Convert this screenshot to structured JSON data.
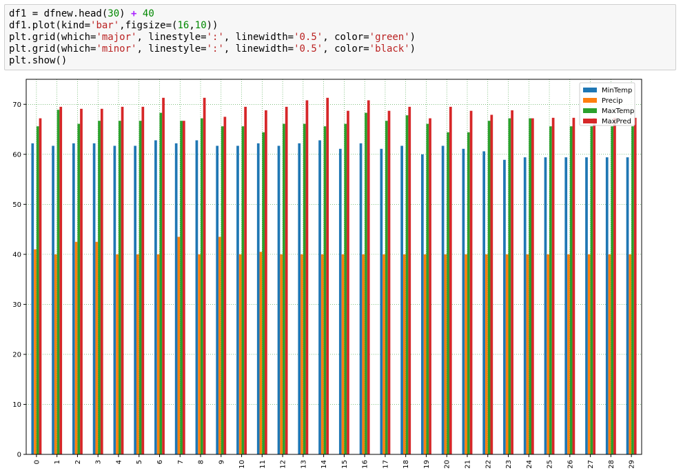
{
  "code": {
    "lines": [
      [
        {
          "t": "plain",
          "v": "df1 = dfnew.head("
        },
        {
          "t": "num",
          "v": "30"
        },
        {
          "t": "plain",
          "v": ") "
        },
        {
          "t": "op",
          "v": "+"
        },
        {
          "t": "plain",
          "v": " "
        },
        {
          "t": "num",
          "v": "40"
        }
      ],
      [
        {
          "t": "plain",
          "v": "df1.plot(kind="
        },
        {
          "t": "str",
          "v": "'bar'"
        },
        {
          "t": "plain",
          "v": ",figsize=("
        },
        {
          "t": "num",
          "v": "16"
        },
        {
          "t": "plain",
          "v": ","
        },
        {
          "t": "num",
          "v": "10"
        },
        {
          "t": "plain",
          "v": "))"
        }
      ],
      [
        {
          "t": "plain",
          "v": "plt.grid(which="
        },
        {
          "t": "str",
          "v": "'major'"
        },
        {
          "t": "plain",
          "v": ", linestyle="
        },
        {
          "t": "str",
          "v": "':'"
        },
        {
          "t": "plain",
          "v": ", linewidth="
        },
        {
          "t": "str",
          "v": "'0.5'"
        },
        {
          "t": "plain",
          "v": ", color="
        },
        {
          "t": "str",
          "v": "'green'"
        },
        {
          "t": "plain",
          "v": ")"
        }
      ],
      [
        {
          "t": "plain",
          "v": "plt.grid(which="
        },
        {
          "t": "str",
          "v": "'minor'"
        },
        {
          "t": "plain",
          "v": ", linestyle="
        },
        {
          "t": "str",
          "v": "':'"
        },
        {
          "t": "plain",
          "v": ", linewidth="
        },
        {
          "t": "str",
          "v": "'0.5'"
        },
        {
          "t": "plain",
          "v": ", color="
        },
        {
          "t": "str",
          "v": "'black'"
        },
        {
          "t": "plain",
          "v": ")"
        }
      ],
      [
        {
          "t": "plain",
          "v": "plt.show()"
        }
      ]
    ]
  },
  "chart_data": {
    "type": "bar",
    "title": "",
    "xlabel": "",
    "ylabel": "",
    "ylim": [
      0,
      75
    ],
    "yticks": [
      0,
      10,
      20,
      30,
      40,
      50,
      60,
      70
    ],
    "ytick_labels": [
      "0",
      "10",
      "20",
      "30",
      "40",
      "50",
      "60",
      "70"
    ],
    "categories": [
      "0",
      "1",
      "2",
      "3",
      "4",
      "5",
      "6",
      "7",
      "8",
      "9",
      "10",
      "11",
      "12",
      "13",
      "14",
      "15",
      "16",
      "17",
      "18",
      "19",
      "20",
      "21",
      "22",
      "23",
      "24",
      "25",
      "26",
      "27",
      "28",
      "29"
    ],
    "grid": true,
    "grid_color": "#008000",
    "legend_position": "top-right",
    "series": [
      {
        "name": "MinTemp",
        "color": "#1f77b4",
        "values": [
          62.2,
          61.7,
          62.2,
          62.2,
          61.7,
          61.7,
          62.8,
          62.2,
          62.8,
          61.7,
          61.7,
          62.2,
          61.7,
          62.2,
          62.8,
          61.1,
          62.2,
          61.1,
          61.7,
          60.0,
          61.7,
          61.1,
          60.6,
          58.9,
          59.4,
          59.4,
          59.4,
          59.4,
          59.4,
          59.4
        ]
      },
      {
        "name": "Precip",
        "color": "#ff7f0e",
        "values": [
          41.0,
          40.0,
          42.5,
          42.5,
          40.0,
          40.0,
          40.0,
          43.5,
          40.0,
          43.5,
          40.0,
          40.5,
          40.0,
          40.0,
          40.0,
          40.0,
          40.0,
          40.0,
          40.0,
          40.0,
          40.0,
          40.0,
          40.0,
          40.0,
          40.0,
          40.0,
          40.0,
          40.0,
          40.0,
          40.0
        ]
      },
      {
        "name": "MaxTemp",
        "color": "#2ca02c",
        "values": [
          65.6,
          68.9,
          66.1,
          66.7,
          66.7,
          66.7,
          68.3,
          66.7,
          67.2,
          65.6,
          65.6,
          64.4,
          66.1,
          66.1,
          65.6,
          66.1,
          68.3,
          66.7,
          67.8,
          66.1,
          64.4,
          64.4,
          66.7,
          67.2,
          67.2,
          65.6,
          65.6,
          65.6,
          65.6,
          65.6
        ]
      },
      {
        "name": "MaxPred",
        "color": "#d62728",
        "values": [
          67.2,
          69.5,
          69.1,
          69.1,
          69.5,
          69.5,
          71.3,
          66.7,
          71.3,
          67.5,
          69.5,
          68.8,
          69.5,
          70.8,
          71.3,
          68.7,
          70.8,
          68.7,
          69.5,
          67.2,
          69.5,
          68.7,
          67.9,
          68.8,
          67.2,
          67.3,
          67.3,
          67.3,
          67.3,
          67.3
        ]
      }
    ]
  }
}
